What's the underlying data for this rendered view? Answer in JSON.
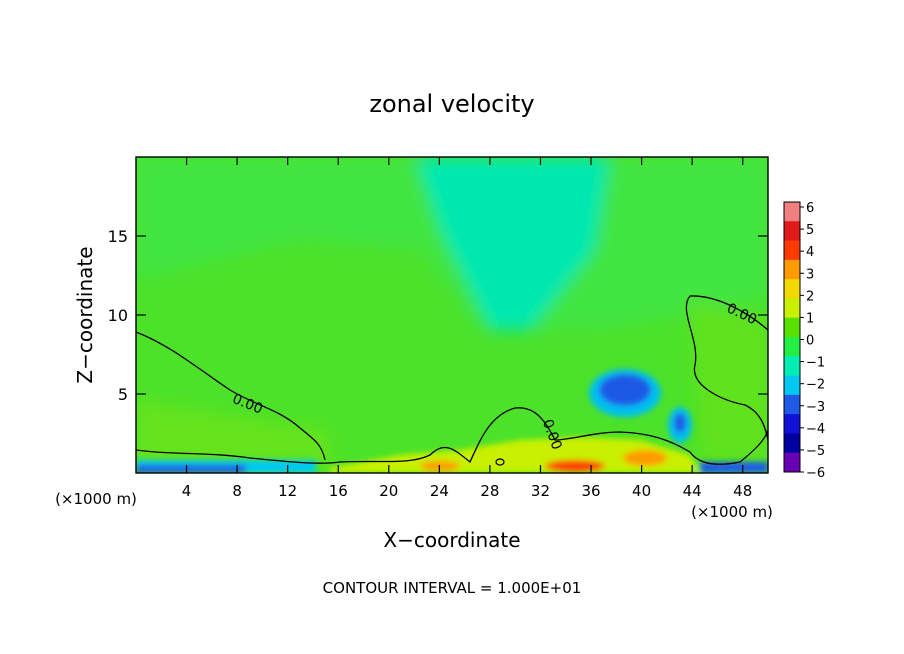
{
  "chart_data": {
    "type": "heatmap",
    "title": "zonal velocity",
    "xlabel": "X−coordinate",
    "ylabel": "Z−coordinate",
    "x_unit_left": "(×1000 m)",
    "x_unit_right": "(×1000 m)",
    "footer": "CONTOUR INTERVAL = 1.000E+01",
    "xlim": [
      0,
      50
    ],
    "ylim": [
      0,
      20
    ],
    "x_ticks": [
      4,
      8,
      12,
      16,
      20,
      24,
      28,
      32,
      36,
      40,
      44,
      48
    ],
    "y_ticks": [
      5,
      10,
      15
    ],
    "colorbar": {
      "levels": [
        "6",
        "5",
        "4",
        "3",
        "2",
        "1",
        "0",
        "−1",
        "−2",
        "−3",
        "−4",
        "−5",
        "−6"
      ],
      "colors": [
        "#f08080",
        "#e01a1a",
        "#ff3a00",
        "#ff9a00",
        "#f0d800",
        "#c8f000",
        "#58e000",
        "#22ee44",
        "#00eeb4",
        "#00c8f0",
        "#1e5ae6",
        "#1010d8",
        "#0000a0",
        "#6a00b4"
      ]
    },
    "field_features": [
      {
        "kind": "background",
        "x": [
          0,
          50
        ],
        "z": [
          0,
          20
        ],
        "value": 0.2
      },
      {
        "kind": "band",
        "x": [
          22,
          38
        ],
        "z": [
          10,
          20
        ],
        "value": -1.5
      },
      {
        "kind": "min",
        "x": 38.5,
        "z": 5.3,
        "value": -3.5
      },
      {
        "kind": "min",
        "x": 43,
        "z": 3,
        "value": -3
      },
      {
        "kind": "max",
        "x": 36,
        "z": 0.5,
        "value": 4
      },
      {
        "kind": "max",
        "x": 40,
        "z": 1,
        "value": 3
      },
      {
        "kind": "surface_min",
        "x": [
          0,
          12
        ],
        "z": 0.3,
        "value": -5
      }
    ],
    "contours": [
      {
        "level": "0.00",
        "label_x": 7,
        "label_z": 4.2
      },
      {
        "level": "0.00",
        "label_x": 32,
        "label_z": 2.2
      },
      {
        "level": "0.00",
        "label_x": 47,
        "label_z": 10
      }
    ]
  }
}
